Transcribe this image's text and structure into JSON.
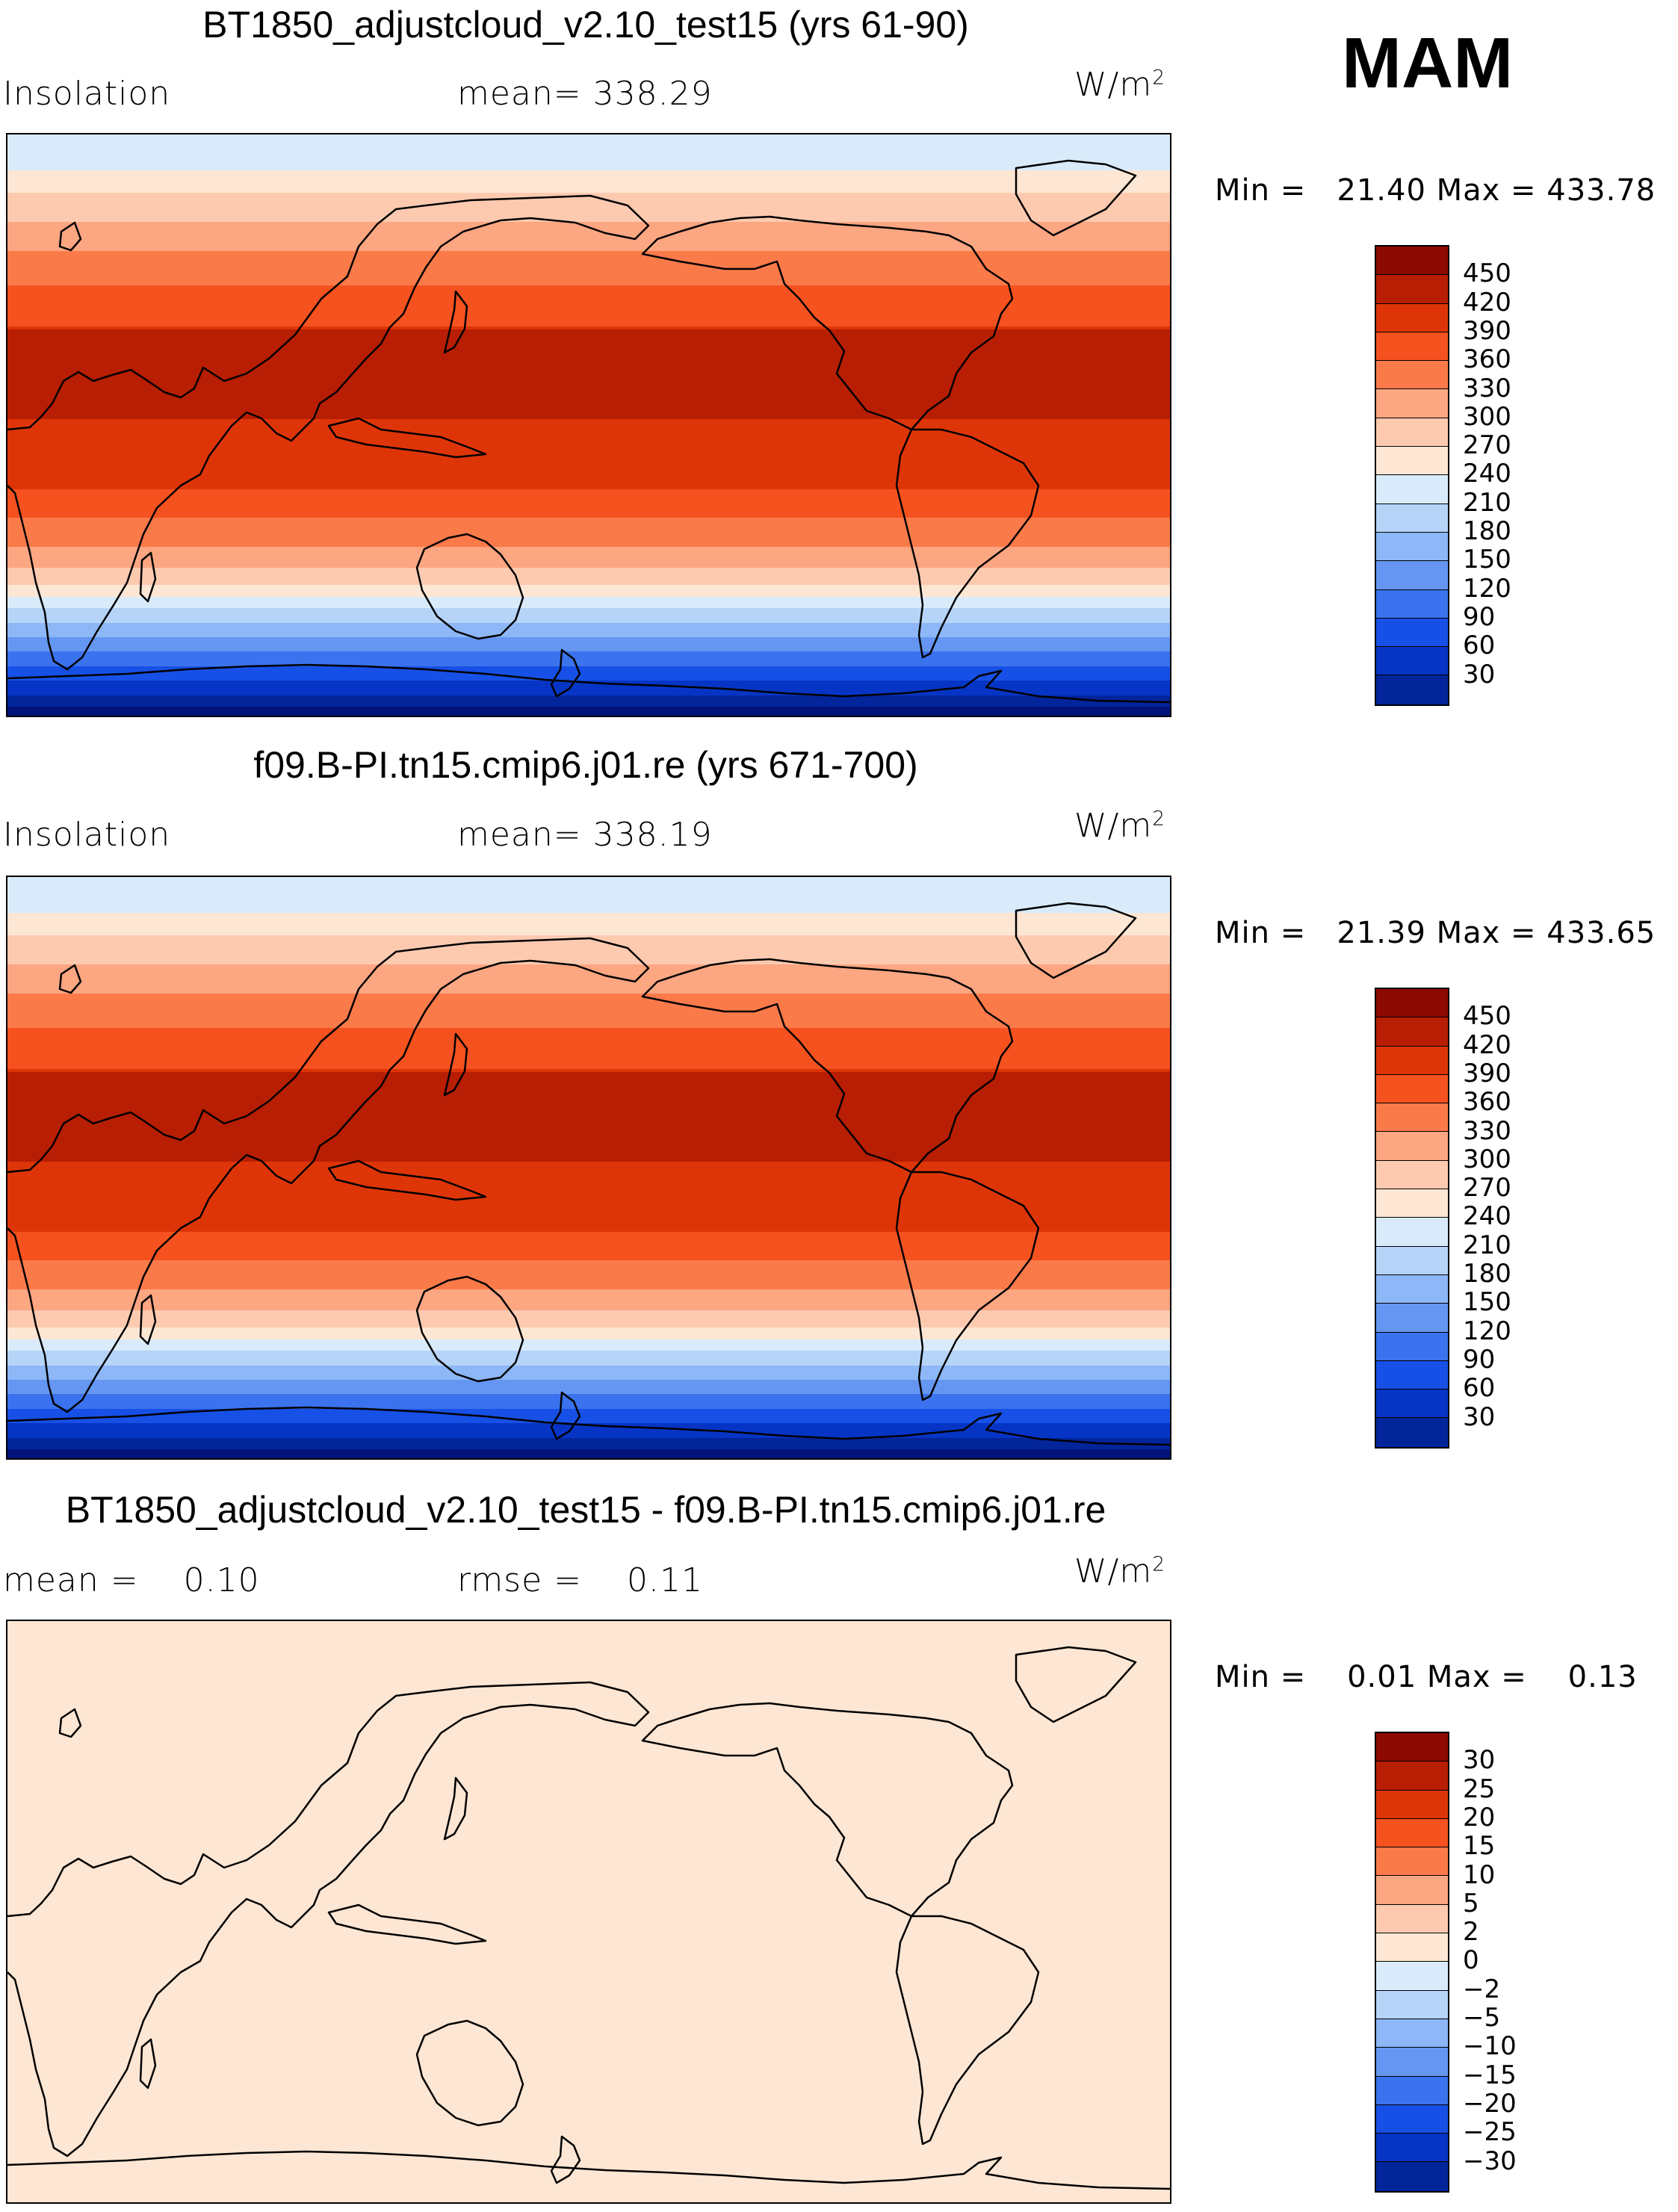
{
  "season": "MAM",
  "units_base": "W/m",
  "units_exp": "2",
  "colors": {
    "warm": [
      "#fde6d3",
      "#fdcab0",
      "#fca682",
      "#fb7a4a",
      "#f5521f",
      "#de3508",
      "#b71e03",
      "#8c0a02"
    ],
    "cool": [
      "#d9ebfb",
      "#b6d3f8",
      "#8db7f6",
      "#6496f2",
      "#3b72ed",
      "#1750e6",
      "#0635c5",
      "#03259a",
      "#02137a"
    ],
    "diff_fill": "#fde6d3"
  },
  "panels": [
    {
      "title": "BT1850_adjustcloud_v2.10_test15 (yrs 61-90)",
      "left_label": "Insolation",
      "stat_label": "mean=",
      "stat_value": "338.29",
      "min_label": "Min =",
      "min_value": "21.40",
      "max_label": "Max =",
      "max_value": "433.78",
      "levels": [
        "450",
        "420",
        "390",
        "360",
        "330",
        "300",
        "270",
        "240",
        "210",
        "180",
        "150",
        "120",
        "90",
        "60",
        "30"
      ]
    },
    {
      "title": "f09.B-PI.tn15.cmip6.j01.re (yrs 671-700)",
      "left_label": "Insolation",
      "stat_label": "mean=",
      "stat_value": "338.19",
      "min_label": "Min =",
      "min_value": "21.39",
      "max_label": "Max =",
      "max_value": "433.65",
      "levels": [
        "450",
        "420",
        "390",
        "360",
        "330",
        "300",
        "270",
        "240",
        "210",
        "180",
        "150",
        "120",
        "90",
        "60",
        "30"
      ]
    },
    {
      "title": "BT1850_adjustcloud_v2.10_test15 - f09.B-PI.tn15.cmip6.j01.re",
      "left_label": "mean =",
      "left_value": "0.10",
      "stat_label": "rmse =",
      "stat_value": "0.11",
      "min_label": "Min =",
      "min_value": "0.01",
      "max_label": "Max =",
      "max_value": "0.13",
      "levels": [
        "30",
        "25",
        "20",
        "15",
        "10",
        "5",
        "2",
        "0",
        "−2",
        "−5",
        "−10",
        "−15",
        "−20",
        "−25",
        "−30"
      ]
    }
  ]
}
